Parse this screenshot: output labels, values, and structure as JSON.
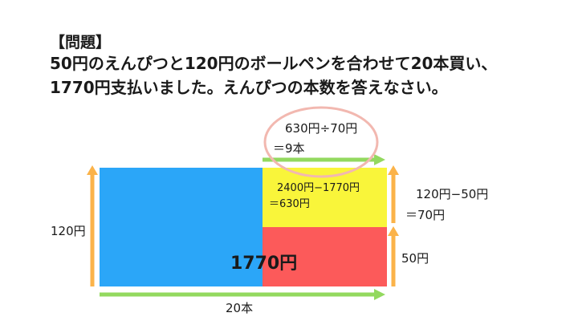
{
  "problem": {
    "heading": "【問題】",
    "text": "50円のえんぴつと120円のボールペンを合わせて20本買い、1770円支払いました。えんぴつの本数を答えなさい。"
  },
  "diagram": {
    "total_label": "1770円",
    "height_label": "120円",
    "width_label": "20本",
    "pencil_price_label": "50円",
    "diff_label_line1": "120円−50円",
    "diff_label_line2": "＝70円",
    "excess_label_line1": "2400円−1770円",
    "excess_label_line2": "＝630円",
    "answer_label_line1": "630円÷70円",
    "answer_label_line2": "＝9本",
    "colors": {
      "blue": "#2ba6f8",
      "yellow": "#f9f53a",
      "red": "#fc5a5a",
      "orange_arrow": "#fbb34a",
      "green_arrow": "#93d95f",
      "circle": "#f2b8b0"
    }
  }
}
